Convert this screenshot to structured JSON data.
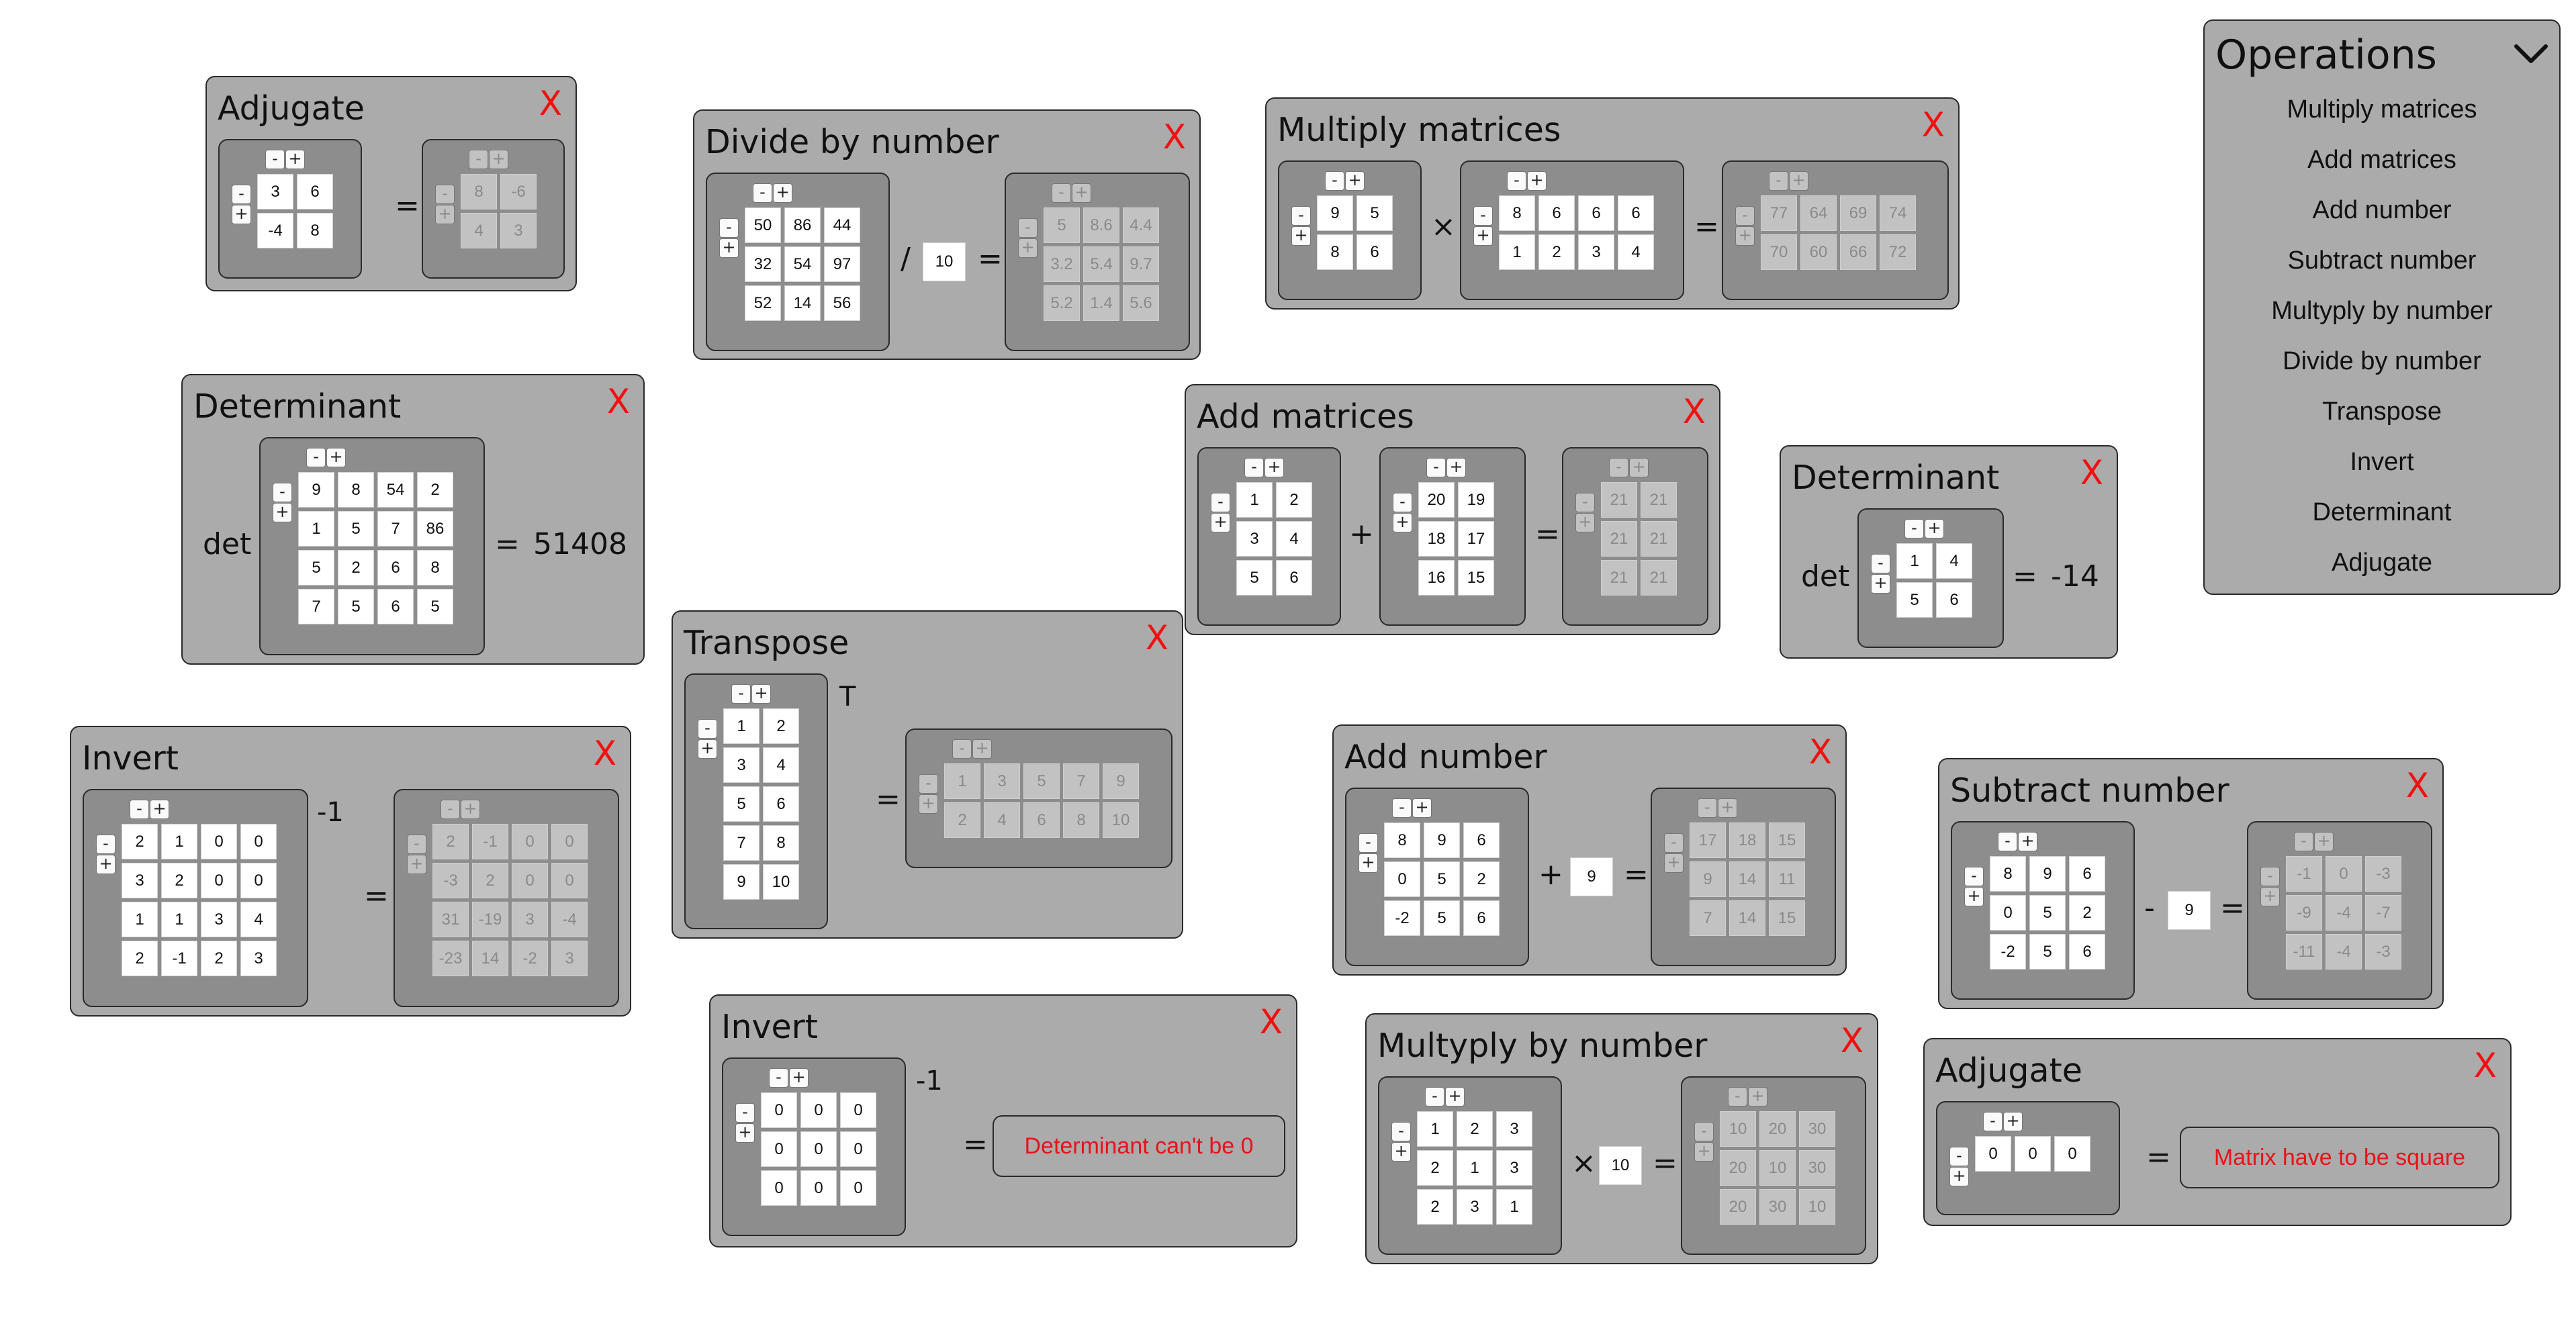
{
  "ui": {
    "close": "X",
    "minus": "-",
    "plus": "+"
  },
  "menu": {
    "title": "Operations",
    "toggle_icon": "chevron-down-icon",
    "items": [
      "Multiply matrices",
      "Add matrices",
      "Add number",
      "Subtract number",
      "Multyply by number",
      "Divide by number",
      "Transpose",
      "Invert",
      "Determinant",
      "Adjugate"
    ]
  },
  "cards": {
    "adjugate1": {
      "title": "Adjugate",
      "eq": "=",
      "input": [
        [
          "3",
          "6"
        ],
        [
          "-4",
          "8"
        ]
      ],
      "output": [
        [
          "8",
          "-6"
        ],
        [
          "4",
          "3"
        ]
      ]
    },
    "divide": {
      "title": "Divide by number",
      "op": "/",
      "eq": "=",
      "number": "10",
      "input": [
        [
          "50",
          "86",
          "44"
        ],
        [
          "32",
          "54",
          "97"
        ],
        [
          "52",
          "14",
          "56"
        ]
      ],
      "output": [
        [
          "5",
          "8.6",
          "4.4"
        ],
        [
          "3.2",
          "5.4",
          "9.7"
        ],
        [
          "5.2",
          "1.4",
          "5.6"
        ]
      ]
    },
    "multiply": {
      "title": "Multiply matrices",
      "op": "×",
      "eq": "=",
      "a": [
        [
          "9",
          "5"
        ],
        [
          "8",
          "6"
        ]
      ],
      "b": [
        [
          "8",
          "6",
          "6",
          "6"
        ],
        [
          "1",
          "2",
          "3",
          "4"
        ]
      ],
      "output": [
        [
          "77",
          "64",
          "69",
          "74"
        ],
        [
          "70",
          "60",
          "66",
          "72"
        ]
      ]
    },
    "det1": {
      "title": "Determinant",
      "label": "det",
      "eq": "=",
      "result": "51408",
      "input": [
        [
          "9",
          "8",
          "54",
          "2"
        ],
        [
          "1",
          "5",
          "7",
          "86"
        ],
        [
          "5",
          "2",
          "6",
          "8"
        ],
        [
          "7",
          "5",
          "6",
          "5"
        ]
      ]
    },
    "add": {
      "title": "Add matrices",
      "op": "+",
      "eq": "=",
      "a": [
        [
          "1",
          "2"
        ],
        [
          "3",
          "4"
        ],
        [
          "5",
          "6"
        ]
      ],
      "b": [
        [
          "20",
          "19"
        ],
        [
          "18",
          "17"
        ],
        [
          "16",
          "15"
        ]
      ],
      "output": [
        [
          "21",
          "21"
        ],
        [
          "21",
          "21"
        ],
        [
          "21",
          "21"
        ]
      ]
    },
    "det2": {
      "title": "Determinant",
      "label": "det",
      "eq": "=",
      "result": "-14",
      "input": [
        [
          "1",
          "4"
        ],
        [
          "5",
          "6"
        ]
      ]
    },
    "transpose": {
      "title": "Transpose",
      "sup": "T",
      "eq": "=",
      "input": [
        [
          "1",
          "2"
        ],
        [
          "3",
          "4"
        ],
        [
          "5",
          "6"
        ],
        [
          "7",
          "8"
        ],
        [
          "9",
          "10"
        ]
      ],
      "output": [
        [
          "1",
          "3",
          "5",
          "7",
          "9"
        ],
        [
          "2",
          "4",
          "6",
          "8",
          "10"
        ]
      ]
    },
    "invert1": {
      "title": "Invert",
      "sup": "-1",
      "eq": "=",
      "input": [
        [
          "2",
          "1",
          "0",
          "0"
        ],
        [
          "3",
          "2",
          "0",
          "0"
        ],
        [
          "1",
          "1",
          "3",
          "4"
        ],
        [
          "2",
          "-1",
          "2",
          "3"
        ]
      ],
      "output": [
        [
          "2",
          "-1",
          "0",
          "0"
        ],
        [
          "-3",
          "2",
          "0",
          "0"
        ],
        [
          "31",
          "-19",
          "3",
          "-4"
        ],
        [
          "-23",
          "14",
          "-2",
          "3"
        ]
      ]
    },
    "addnum": {
      "title": "Add number",
      "op": "+",
      "eq": "=",
      "number": "9",
      "input": [
        [
          "8",
          "9",
          "6"
        ],
        [
          "0",
          "5",
          "2"
        ],
        [
          "-2",
          "5",
          "6"
        ]
      ],
      "output": [
        [
          "17",
          "18",
          "15"
        ],
        [
          "9",
          "14",
          "11"
        ],
        [
          "7",
          "14",
          "15"
        ]
      ]
    },
    "subnum": {
      "title": "Subtract number",
      "op": "-",
      "eq": "=",
      "number": "9",
      "input": [
        [
          "8",
          "9",
          "6"
        ],
        [
          "0",
          "5",
          "2"
        ],
        [
          "-2",
          "5",
          "6"
        ]
      ],
      "output": [
        [
          "-1",
          "0",
          "-3"
        ],
        [
          "-9",
          "-4",
          "-7"
        ],
        [
          "-11",
          "-4",
          "-3"
        ]
      ]
    },
    "invert2": {
      "title": "Invert",
      "sup": "-1",
      "eq": "=",
      "input": [
        [
          "0",
          "0",
          "0"
        ],
        [
          "0",
          "0",
          "0"
        ],
        [
          "0",
          "0",
          "0"
        ]
      ],
      "error": "Determinant can't be 0"
    },
    "multnum": {
      "title": "Multyply by number",
      "op": "×",
      "eq": "=",
      "number": "10",
      "input": [
        [
          "1",
          "2",
          "3"
        ],
        [
          "2",
          "1",
          "3"
        ],
        [
          "2",
          "3",
          "1"
        ]
      ],
      "output": [
        [
          "10",
          "20",
          "30"
        ],
        [
          "20",
          "10",
          "30"
        ],
        [
          "20",
          "30",
          "10"
        ]
      ]
    },
    "adjugate2": {
      "title": "Adjugate",
      "eq": "=",
      "input": [
        [
          "0",
          "0",
          "0"
        ]
      ],
      "error": "Matrix have to be square"
    }
  }
}
